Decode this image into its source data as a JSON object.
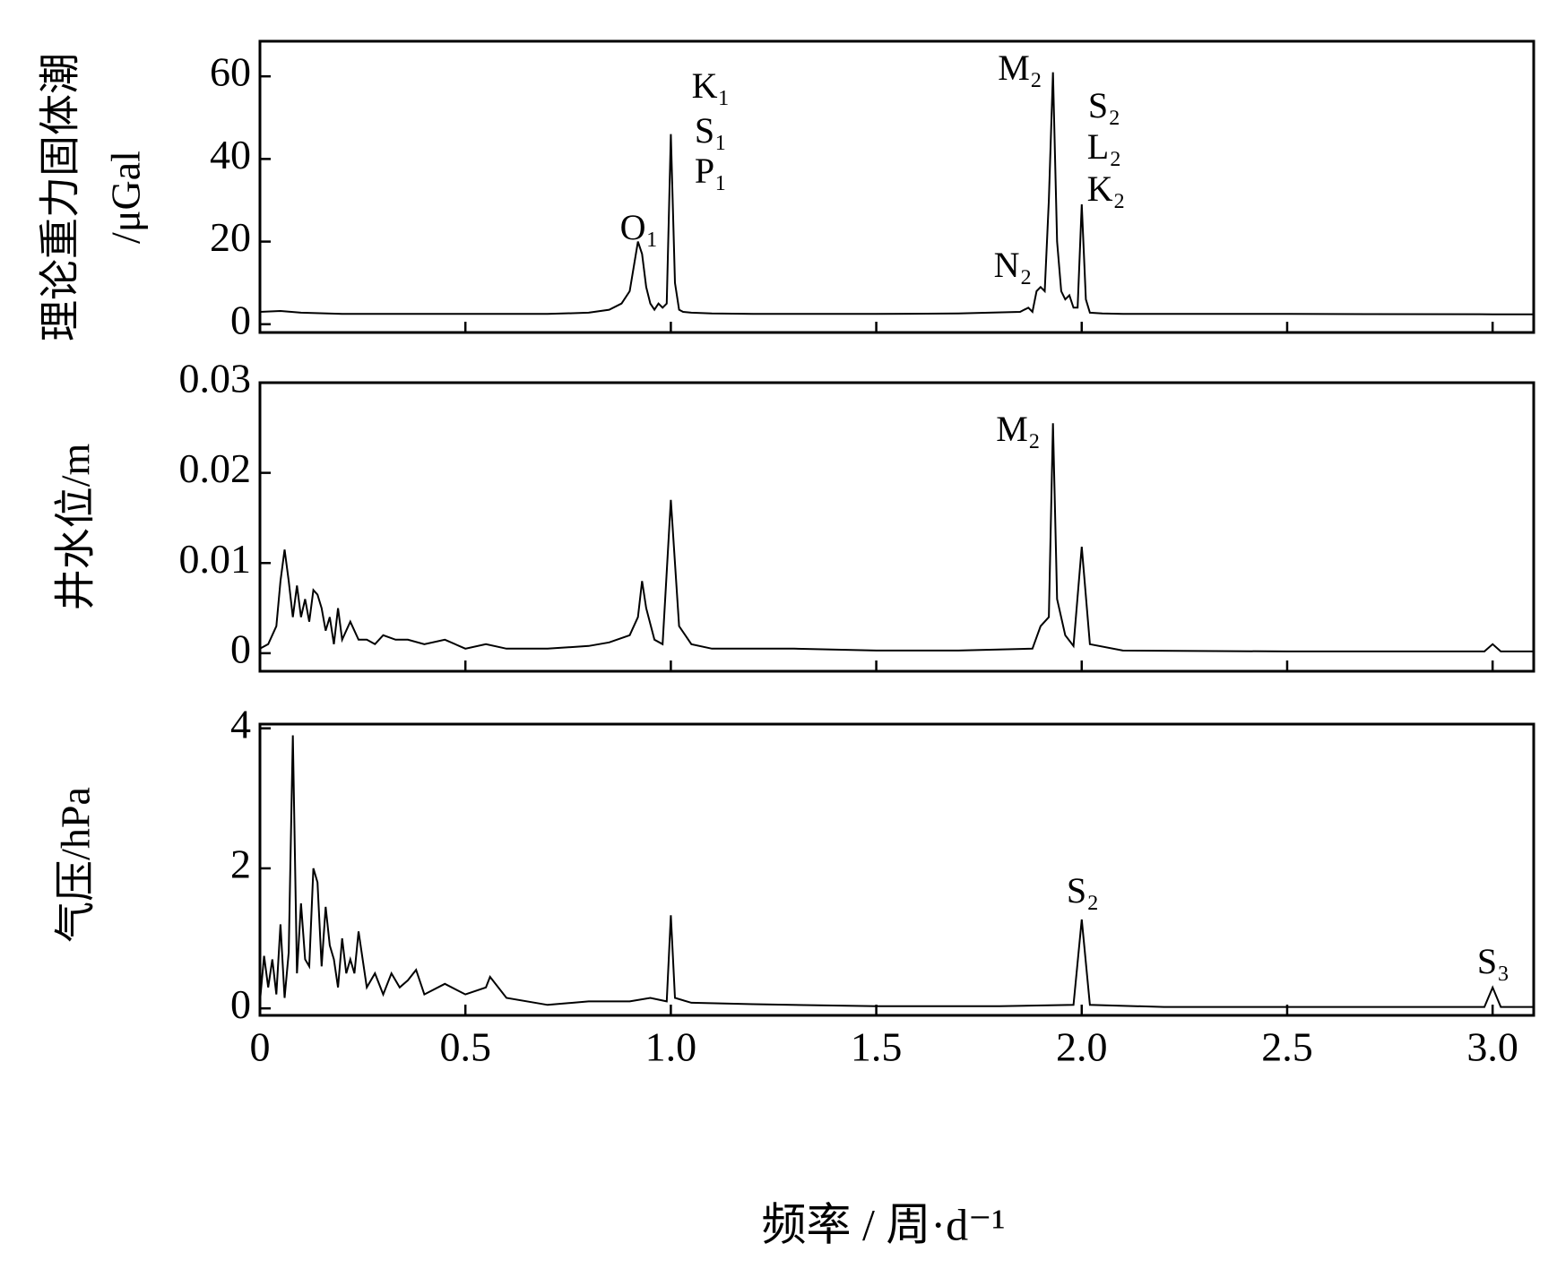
{
  "chart_data": [
    {
      "type": "line",
      "y_label": [
        "理论重力固体潮",
        "/μGal"
      ],
      "x": [
        0,
        0.05,
        0.1,
        0.2,
        0.5,
        0.7,
        0.8,
        0.85,
        0.88,
        0.9,
        0.91,
        0.92,
        0.93,
        0.94,
        0.95,
        0.96,
        0.97,
        0.98,
        0.99,
        1.0,
        1.01,
        1.02,
        1.03,
        1.05,
        1.1,
        1.2,
        1.5,
        1.7,
        1.85,
        1.87,
        1.88,
        1.89,
        1.9,
        1.91,
        1.92,
        1.93,
        1.94,
        1.95,
        1.96,
        1.97,
        1.98,
        1.99,
        2.0,
        2.01,
        2.02,
        2.05,
        2.1,
        2.5,
        3.0,
        3.1
      ],
      "values": [
        3,
        3.2,
        2.8,
        2.5,
        2.5,
        2.5,
        2.8,
        3.5,
        5,
        8,
        14,
        20,
        17,
        9,
        5,
        3.5,
        5,
        4,
        5,
        46,
        10,
        3.5,
        3,
        2.8,
        2.6,
        2.5,
        2.5,
        2.6,
        3,
        4,
        3,
        8,
        9,
        8,
        30,
        61,
        20,
        8,
        6,
        7,
        4,
        4,
        29,
        6,
        2.8,
        2.6,
        2.5,
        2.5,
        2.4,
        2.4
      ],
      "color": "#000000",
      "xlim": [
        0,
        3.1
      ],
      "xticks": [
        0.5,
        1,
        1.5,
        2,
        2.5,
        3
      ],
      "ylim": [
        -2,
        68.5
      ],
      "yticks": [
        0,
        20,
        40,
        60
      ],
      "annotations": [
        "O₁",
        "K₁",
        "S₁",
        "P₁",
        "M₂",
        "N₂",
        "S₂",
        "L₂",
        "K₂"
      ]
    },
    {
      "type": "line",
      "y_label": [
        "井水位/m"
      ],
      "x": [
        0,
        0.02,
        0.04,
        0.05,
        0.06,
        0.07,
        0.08,
        0.09,
        0.1,
        0.11,
        0.12,
        0.13,
        0.14,
        0.15,
        0.16,
        0.17,
        0.18,
        0.19,
        0.2,
        0.22,
        0.24,
        0.26,
        0.28,
        0.3,
        0.33,
        0.36,
        0.4,
        0.45,
        0.5,
        0.55,
        0.6,
        0.7,
        0.8,
        0.85,
        0.9,
        0.92,
        0.93,
        0.94,
        0.96,
        0.98,
        1.0,
        1.02,
        1.05,
        1.1,
        1.3,
        1.5,
        1.7,
        1.88,
        1.9,
        1.92,
        1.93,
        1.94,
        1.96,
        1.98,
        2.0,
        2.02,
        2.1,
        2.5,
        2.98,
        3.0,
        3.02,
        3.1
      ],
      "values": [
        0.0005,
        0.001,
        0.003,
        0.008,
        0.0115,
        0.008,
        0.004,
        0.0075,
        0.004,
        0.006,
        0.0035,
        0.007,
        0.0065,
        0.005,
        0.0025,
        0.004,
        0.001,
        0.005,
        0.0015,
        0.0035,
        0.0015,
        0.0015,
        0.001,
        0.002,
        0.0015,
        0.0015,
        0.001,
        0.0015,
        0.0005,
        0.001,
        0.0005,
        0.0005,
        0.0008,
        0.0012,
        0.002,
        0.004,
        0.008,
        0.005,
        0.0015,
        0.001,
        0.017,
        0.003,
        0.001,
        0.0005,
        0.0005,
        0.0003,
        0.0003,
        0.0005,
        0.003,
        0.004,
        0.0255,
        0.006,
        0.002,
        0.0008,
        0.0118,
        0.001,
        0.0003,
        0.0002,
        0.0002,
        0.001,
        0.0002,
        0.0002
      ],
      "color": "#000000",
      "xlim": [
        0,
        3.1
      ],
      "xticks": [
        0.5,
        1,
        1.5,
        2,
        2.5,
        3
      ],
      "ylim": [
        -0.002,
        0.03
      ],
      "yticks": [
        0,
        0.01,
        0.02,
        0.03
      ],
      "annotations": [
        "M₂"
      ]
    },
    {
      "type": "line",
      "y_label": [
        "气压/hPa"
      ],
      "x_label": "频率 / 周·d⁻¹",
      "x": [
        0,
        0.01,
        0.02,
        0.03,
        0.04,
        0.05,
        0.06,
        0.07,
        0.08,
        0.09,
        0.1,
        0.11,
        0.12,
        0.13,
        0.14,
        0.15,
        0.16,
        0.17,
        0.18,
        0.19,
        0.2,
        0.21,
        0.22,
        0.23,
        0.24,
        0.26,
        0.28,
        0.3,
        0.32,
        0.34,
        0.36,
        0.38,
        0.4,
        0.45,
        0.5,
        0.55,
        0.56,
        0.6,
        0.7,
        0.8,
        0.9,
        0.95,
        0.99,
        1.0,
        1.01,
        1.05,
        1.2,
        1.5,
        1.8,
        1.98,
        2.0,
        2.02,
        2.2,
        2.6,
        2.98,
        3.0,
        3.02,
        3.1
      ],
      "values": [
        0.1,
        0.75,
        0.3,
        0.7,
        0.2,
        1.2,
        0.15,
        0.8,
        3.9,
        0.5,
        1.5,
        0.7,
        0.6,
        2.0,
        1.8,
        0.6,
        1.45,
        0.9,
        0.7,
        0.3,
        1.0,
        0.5,
        0.7,
        0.5,
        1.1,
        0.3,
        0.5,
        0.2,
        0.5,
        0.3,
        0.4,
        0.55,
        0.2,
        0.35,
        0.2,
        0.3,
        0.45,
        0.15,
        0.05,
        0.1,
        0.1,
        0.15,
        0.1,
        1.33,
        0.15,
        0.08,
        0.06,
        0.03,
        0.03,
        0.05,
        1.27,
        0.05,
        0.02,
        0.02,
        0.02,
        0.3,
        0.02,
        0.02
      ],
      "color": "#000000",
      "xlim": [
        0,
        3.1
      ],
      "xticks": [
        0,
        {
          "value": 0.5,
          "label": "0.5"
        },
        {
          "value": 1,
          "label": "1.0"
        },
        1.5,
        {
          "value": 2,
          "label": "2.0"
        },
        2.5,
        {
          "value": 3,
          "label": "3.0"
        }
      ],
      "ylim": [
        -0.1,
        4.06
      ],
      "yticks": [
        0,
        2,
        4
      ],
      "annotations": [
        "S₂",
        "S₃"
      ]
    }
  ]
}
